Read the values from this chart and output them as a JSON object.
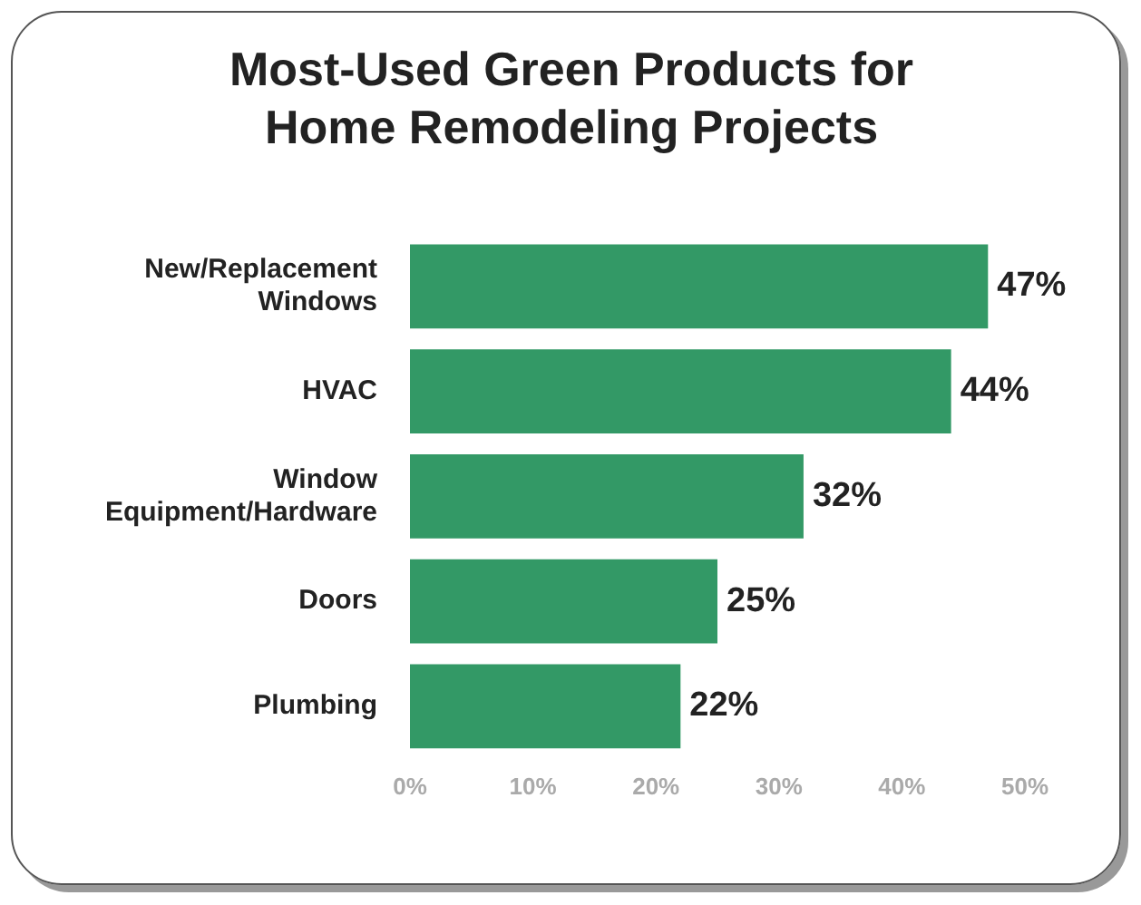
{
  "chart_data": {
    "type": "bar",
    "orientation": "horizontal",
    "title": "Most-Used Green Products for Home Remodeling Projects",
    "categories": [
      "New/Replacement Windows",
      "HVAC",
      "Window Equipment/Hardware",
      "Doors",
      "Plumbing"
    ],
    "values": [
      47,
      44,
      32,
      25,
      22
    ],
    "value_labels": [
      "47%",
      "44%",
      "32%",
      "25%",
      "22%"
    ],
    "color": "#339966",
    "xlim": [
      0,
      50
    ],
    "xticks": [
      {
        "value": 0,
        "label": "0%"
      },
      {
        "value": 10,
        "label": "10%"
      },
      {
        "value": 20,
        "label": "20%"
      },
      {
        "value": 30,
        "label": "30%"
      },
      {
        "value": 40,
        "label": "40%"
      },
      {
        "value": 50,
        "label": "50%"
      }
    ],
    "grid": false,
    "legend": false
  }
}
